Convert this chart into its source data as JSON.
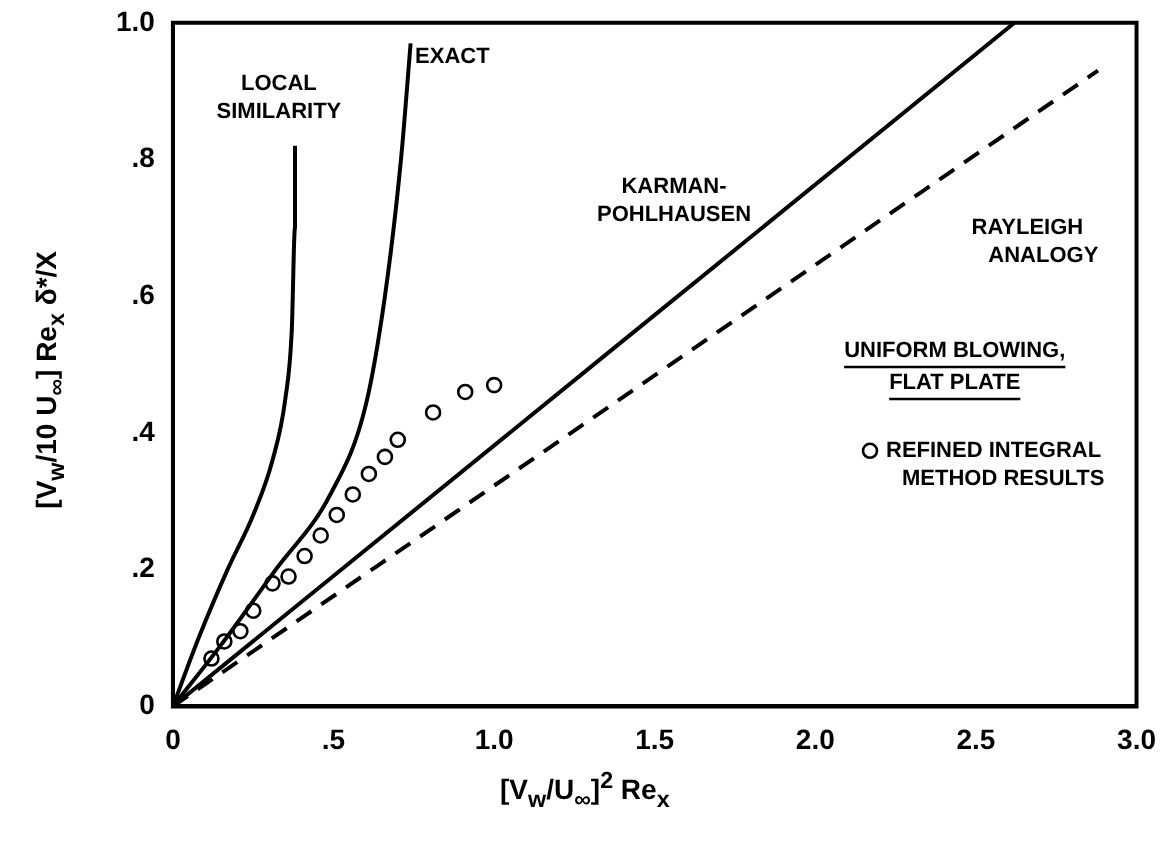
{
  "chart_data": {
    "type": "line",
    "xlabel": "[V$_{w}$/U$_{∞}$]$^{2}$ Re$_{x}$",
    "ylabel": "[V$_{w}$/10 U$_{∞}$] Re$_{x}$ δ*/X",
    "xlim": [
      0,
      3
    ],
    "ylim": [
      0,
      1
    ],
    "xticks": [
      0,
      {
        "value": 0.5,
        "label": ".5"
      },
      {
        "value": 1,
        "label": "1.0"
      },
      {
        "value": 1.5,
        "label": "1.5"
      },
      {
        "value": 2,
        "label": "2.0"
      },
      {
        "value": 2.5,
        "label": "2.5"
      },
      {
        "value": 3,
        "label": "3.0"
      }
    ],
    "yticks": [
      0,
      {
        "value": 0.2,
        "label": ".2"
      },
      {
        "value": 0.4,
        "label": ".4"
      },
      {
        "value": 0.6,
        "label": ".6"
      },
      {
        "value": 0.8,
        "label": ".8"
      },
      {
        "value": 1,
        "label": "1.0"
      }
    ],
    "grid": false,
    "legend": "right",
    "annotations": [
      "UNIFORM BLOWING, FLAT PLATE"
    ],
    "series": [
      {
        "name": "LOCAL SIMILARITY",
        "color": "#000000",
        "line_style": "solid",
        "marker": "none",
        "x": [
          0,
          0.08,
          0.17,
          0.25,
          0.31,
          0.35,
          0.37,
          0.38,
          0.38
        ],
        "values": [
          0,
          0.1,
          0.2,
          0.28,
          0.36,
          0.45,
          0.55,
          0.7,
          0.82
        ]
      },
      {
        "name": "EXACT",
        "color": "#000000",
        "line_style": "solid",
        "marker": "none",
        "x": [
          0,
          0.15,
          0.32,
          0.49,
          0.6,
          0.66,
          0.71,
          0.74
        ],
        "values": [
          0,
          0.09,
          0.2,
          0.31,
          0.44,
          0.6,
          0.8,
          0.97
        ]
      },
      {
        "name": "KARMAN-POHLHAUSEN",
        "color": "#000000",
        "line_style": "solid",
        "marker": "none",
        "x": [
          0,
          2.62
        ],
        "values": [
          0,
          1.0
        ]
      },
      {
        "name": "RAYLEIGH ANALOGY",
        "color": "#000000",
        "line_style": "dashed",
        "marker": "none",
        "x": [
          0,
          2.88
        ],
        "values": [
          0,
          0.93
        ]
      },
      {
        "name": "REFINED INTEGRAL METHOD RESULTS",
        "type": "scatter",
        "color": "#000000",
        "marker": "circle",
        "x": [
          0.12,
          0.16,
          0.21,
          0.25,
          0.31,
          0.36,
          0.41,
          0.46,
          0.51,
          0.56,
          0.61,
          0.66,
          0.7,
          0.81,
          0.91,
          1.0
        ],
        "values": [
          0.07,
          0.095,
          0.11,
          0.14,
          0.18,
          0.19,
          0.22,
          0.25,
          0.28,
          0.31,
          0.34,
          0.365,
          0.39,
          0.43,
          0.46,
          0.47
        ]
      }
    ]
  }
}
